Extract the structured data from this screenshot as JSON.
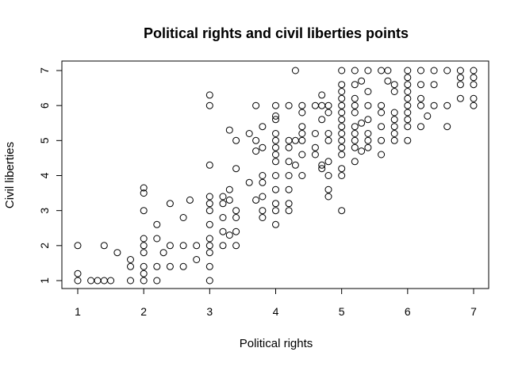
{
  "chart_data": {
    "type": "scatter",
    "title": "Political rights and civil liberties points",
    "xlabel": "Political rights",
    "ylabel": "Civil liberties",
    "xlim": [
      1,
      7
    ],
    "ylim": [
      1,
      7
    ],
    "xticks": [
      1,
      2,
      3,
      4,
      5,
      6,
      7
    ],
    "yticks": [
      1,
      2,
      3,
      4,
      5,
      6,
      7
    ],
    "grid": false,
    "legend": "none",
    "marker": "open-circle",
    "color": "#000000",
    "points": [
      [
        1,
        1
      ],
      [
        1,
        1.2
      ],
      [
        1,
        2
      ],
      [
        1.2,
        1
      ],
      [
        1.3,
        1
      ],
      [
        1.4,
        1
      ],
      [
        1.5,
        1
      ],
      [
        1.4,
        2
      ],
      [
        1.6,
        1.8
      ],
      [
        1.8,
        1
      ],
      [
        1.8,
        1.4
      ],
      [
        1.8,
        1.6
      ],
      [
        2,
        1
      ],
      [
        2,
        1.2
      ],
      [
        2,
        1.4
      ],
      [
        2,
        1.8
      ],
      [
        2,
        2
      ],
      [
        2,
        2.2
      ],
      [
        2,
        3
      ],
      [
        2,
        3.5
      ],
      [
        2,
        3.65
      ],
      [
        2.2,
        1
      ],
      [
        2.2,
        1.4
      ],
      [
        2.2,
        2.2
      ],
      [
        2.2,
        2.6
      ],
      [
        2.3,
        1.8
      ],
      [
        2.4,
        1.4
      ],
      [
        2.4,
        2
      ],
      [
        2.4,
        3.2
      ],
      [
        2.6,
        1.4
      ],
      [
        2.6,
        2
      ],
      [
        2.6,
        2.8
      ],
      [
        2.7,
        3.3
      ],
      [
        2.8,
        1.6
      ],
      [
        2.8,
        2
      ],
      [
        3,
        1
      ],
      [
        3,
        1.4
      ],
      [
        3,
        1.8
      ],
      [
        3,
        2
      ],
      [
        3,
        2.2
      ],
      [
        3,
        2.6
      ],
      [
        3,
        3
      ],
      [
        3,
        3.2
      ],
      [
        3,
        3.4
      ],
      [
        3,
        4.3
      ],
      [
        3,
        6
      ],
      [
        3,
        6.3
      ],
      [
        3.2,
        2
      ],
      [
        3.2,
        2.4
      ],
      [
        3.2,
        2.8
      ],
      [
        3.2,
        3.2
      ],
      [
        3.2,
        3.4
      ],
      [
        3.3,
        2.3
      ],
      [
        3.3,
        3.3
      ],
      [
        3.3,
        3.6
      ],
      [
        3.3,
        5.3
      ],
      [
        3.4,
        2
      ],
      [
        3.4,
        2.4
      ],
      [
        3.4,
        2.8
      ],
      [
        3.4,
        3
      ],
      [
        3.4,
        4.2
      ],
      [
        3.4,
        5
      ],
      [
        3.6,
        3.8
      ],
      [
        3.6,
        5.2
      ],
      [
        3.7,
        3.3
      ],
      [
        3.7,
        4.7
      ],
      [
        3.7,
        5
      ],
      [
        3.7,
        6
      ],
      [
        3.8,
        2.8
      ],
      [
        3.8,
        3
      ],
      [
        3.8,
        3.4
      ],
      [
        3.8,
        3.8
      ],
      [
        3.8,
        4
      ],
      [
        3.8,
        4.8
      ],
      [
        3.8,
        5.4
      ],
      [
        4,
        2.6
      ],
      [
        4,
        3
      ],
      [
        4,
        3.2
      ],
      [
        4,
        3.6
      ],
      [
        4,
        4
      ],
      [
        4,
        4.4
      ],
      [
        4,
        4.6
      ],
      [
        4,
        4.8
      ],
      [
        4,
        5
      ],
      [
        4,
        5.2
      ],
      [
        4,
        5.6
      ],
      [
        4,
        5.7
      ],
      [
        4,
        6
      ],
      [
        4.2,
        3
      ],
      [
        4.2,
        3.2
      ],
      [
        4.2,
        3.6
      ],
      [
        4.2,
        4
      ],
      [
        4.2,
        4.4
      ],
      [
        4.2,
        4.8
      ],
      [
        4.2,
        5
      ],
      [
        4.2,
        6
      ],
      [
        4.3,
        4.3
      ],
      [
        4.3,
        5
      ],
      [
        4.3,
        7
      ],
      [
        4.4,
        4
      ],
      [
        4.4,
        4.6
      ],
      [
        4.4,
        5
      ],
      [
        4.4,
        5.2
      ],
      [
        4.4,
        5.4
      ],
      [
        4.4,
        5.8
      ],
      [
        4.4,
        6
      ],
      [
        4.6,
        4.6
      ],
      [
        4.6,
        4.8
      ],
      [
        4.6,
        5.2
      ],
      [
        4.6,
        6
      ],
      [
        4.7,
        4.2
      ],
      [
        4.7,
        4.3
      ],
      [
        4.7,
        5.6
      ],
      [
        4.7,
        6
      ],
      [
        4.7,
        6.3
      ],
      [
        4.8,
        3.4
      ],
      [
        4.8,
        3.6
      ],
      [
        4.8,
        4
      ],
      [
        4.8,
        4.4
      ],
      [
        4.8,
        5
      ],
      [
        4.8,
        5.2
      ],
      [
        4.8,
        5.8
      ],
      [
        4.8,
        6
      ],
      [
        5,
        3
      ],
      [
        5,
        4
      ],
      [
        5,
        4.2
      ],
      [
        5,
        4.6
      ],
      [
        5,
        4.8
      ],
      [
        5,
        5
      ],
      [
        5,
        5.2
      ],
      [
        5,
        5.4
      ],
      [
        5,
        5.6
      ],
      [
        5,
        5.8
      ],
      [
        5,
        6
      ],
      [
        5,
        6.2
      ],
      [
        5,
        6.4
      ],
      [
        5,
        6.6
      ],
      [
        5,
        7
      ],
      [
        5.2,
        4.4
      ],
      [
        5.2,
        4.8
      ],
      [
        5.2,
        5
      ],
      [
        5.2,
        5.2
      ],
      [
        5.2,
        5.4
      ],
      [
        5.2,
        5.8
      ],
      [
        5.2,
        6
      ],
      [
        5.2,
        6.2
      ],
      [
        5.2,
        6.6
      ],
      [
        5.2,
        7
      ],
      [
        5.3,
        4.7
      ],
      [
        5.3,
        5.5
      ],
      [
        5.3,
        6.7
      ],
      [
        5.4,
        4.8
      ],
      [
        5.4,
        5
      ],
      [
        5.4,
        5.2
      ],
      [
        5.4,
        5.6
      ],
      [
        5.4,
        6
      ],
      [
        5.4,
        6.4
      ],
      [
        5.4,
        7
      ],
      [
        5.6,
        4.6
      ],
      [
        5.6,
        5
      ],
      [
        5.6,
        5.4
      ],
      [
        5.6,
        5.8
      ],
      [
        5.6,
        6
      ],
      [
        5.6,
        7
      ],
      [
        5.7,
        6.7
      ],
      [
        5.7,
        7
      ],
      [
        5.8,
        5
      ],
      [
        5.8,
        5.2
      ],
      [
        5.8,
        5.4
      ],
      [
        5.8,
        5.6
      ],
      [
        5.8,
        5.8
      ],
      [
        5.8,
        6.4
      ],
      [
        5.8,
        6.6
      ],
      [
        6,
        5
      ],
      [
        6,
        5.4
      ],
      [
        6,
        5.6
      ],
      [
        6,
        5.8
      ],
      [
        6,
        6
      ],
      [
        6,
        6.2
      ],
      [
        6,
        6.4
      ],
      [
        6,
        6.6
      ],
      [
        6,
        6.8
      ],
      [
        6,
        7
      ],
      [
        6.2,
        5.4
      ],
      [
        6.2,
        6
      ],
      [
        6.2,
        6.2
      ],
      [
        6.2,
        6.6
      ],
      [
        6.2,
        7
      ],
      [
        6.3,
        5.7
      ],
      [
        6.4,
        6
      ],
      [
        6.4,
        6.6
      ],
      [
        6.4,
        7
      ],
      [
        6.6,
        5.4
      ],
      [
        6.6,
        6
      ],
      [
        6.6,
        7
      ],
      [
        6.8,
        6.2
      ],
      [
        6.8,
        6.6
      ],
      [
        6.8,
        6.8
      ],
      [
        6.8,
        7
      ],
      [
        7,
        6
      ],
      [
        7,
        6.2
      ],
      [
        7,
        6.6
      ],
      [
        7,
        6.8
      ],
      [
        7,
        7
      ]
    ]
  }
}
